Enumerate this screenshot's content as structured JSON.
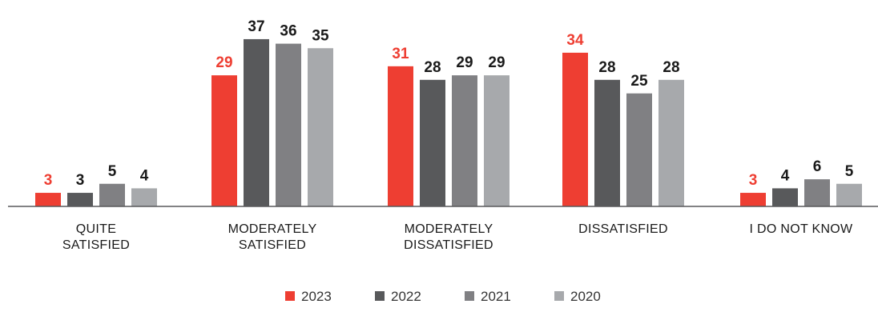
{
  "chart_data": {
    "type": "bar",
    "categories": [
      [
        "QUITE",
        "SATISFIED"
      ],
      [
        "MODERATELY",
        "SATISFIED"
      ],
      [
        "MODERATELY",
        "DISSATISFIED"
      ],
      [
        "DISSATISFIED"
      ],
      [
        "I DO NOT KNOW"
      ]
    ],
    "series": [
      {
        "name": "2023",
        "color": "#ee3e32",
        "label_color": "#ee3e32",
        "values": [
          3,
          29,
          31,
          34,
          3
        ]
      },
      {
        "name": "2022",
        "color": "#58595b",
        "label_color": "#1a1a1a",
        "values": [
          3,
          37,
          28,
          28,
          4
        ]
      },
      {
        "name": "2021",
        "color": "#808083",
        "label_color": "#1a1a1a",
        "values": [
          5,
          36,
          29,
          25,
          6
        ]
      },
      {
        "name": "2020",
        "color": "#a7a9ac",
        "label_color": "#1a1a1a",
        "values": [
          4,
          35,
          29,
          28,
          5
        ]
      }
    ],
    "ylim": [
      0,
      40
    ],
    "grid": false,
    "legend_position": "bottom-center",
    "baseline_color": "#58595b"
  }
}
